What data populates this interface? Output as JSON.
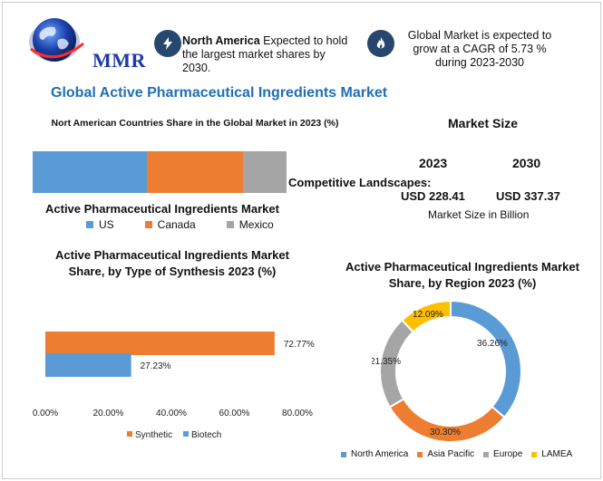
{
  "brand": {
    "logo_text": "MMR"
  },
  "header": {
    "note1_bold": "North America",
    "note1_rest": " Expected to hold the largest market shares by 2030.",
    "note2": "Global Market is expected to grow at a CAGR of 5.73 % during 2023-2030"
  },
  "title": "Global Active Pharmaceutical Ingredients Market",
  "stack_title": "Nort American Countries Share in the Global Market in 2023  (%)",
  "stack_label": "Active Pharmaceutical Ingredients Market",
  "market_size": {
    "title": "Market Size",
    "year1": "2023",
    "year2": "2030",
    "value1": "USD 228.41",
    "value2": "USD 337.37",
    "unit": "Market Size in Billion"
  },
  "competitive": "Competitive Landscapes:",
  "colors": {
    "blue": "#5b9bd5",
    "orange": "#ed7d31",
    "gray": "#a5a5a5",
    "yellow": "#ffc000",
    "title_blue": "#1f6fb5",
    "icon_navy": "#27476e"
  },
  "icons": [
    "globe-icon",
    "lightning-icon",
    "flame-icon"
  ],
  "chart_data": [
    {
      "type": "bar",
      "stacked": true,
      "orientation": "horizontal",
      "title": "Nort American Countries Share in the Global Market in 2023  (%)",
      "categories": [
        "Active Pharmaceutical Ingredients Market"
      ],
      "series": [
        {
          "name": "US",
          "values": [
            45
          ],
          "color": "#5b9bd5"
        },
        {
          "name": "Canada",
          "values": [
            38
          ],
          "color": "#ed7d31"
        },
        {
          "name": "Mexico",
          "values": [
            17
          ],
          "color": "#a5a5a5"
        }
      ],
      "legend": "bottom"
    },
    {
      "type": "bar",
      "orientation": "horizontal",
      "title": "Active Pharmaceutical Ingredients Market Share, by Type of Synthesis 2023 (%)",
      "series": [
        {
          "name": "Synthetic",
          "value": 72.77,
          "label": "72.77%",
          "color": "#ed7d31"
        },
        {
          "name": "Biotech",
          "value": 27.23,
          "label": "27.23%",
          "color": "#5b9bd5"
        }
      ],
      "xlim": [
        0,
        80
      ],
      "xticks": [
        "0.00%",
        "20.00%",
        "40.00%",
        "60.00%",
        "80.00%"
      ],
      "legend": "bottom"
    },
    {
      "type": "pie",
      "donut": true,
      "title": "Active Pharmaceutical Ingredients Market Share, by Region 2023 (%)",
      "slices": [
        {
          "name": "North America",
          "value": 36.26,
          "label": "36.26%",
          "color": "#5b9bd5"
        },
        {
          "name": "Asia Pacific",
          "value": 30.3,
          "label": "30.30%",
          "color": "#ed7d31"
        },
        {
          "name": "Europe",
          "value": 21.35,
          "label": "21.35%",
          "color": "#a5a5a5"
        },
        {
          "name": "LAMEA",
          "value": 12.09,
          "label": "12.09%",
          "color": "#ffc000"
        }
      ],
      "legend": "bottom"
    }
  ]
}
